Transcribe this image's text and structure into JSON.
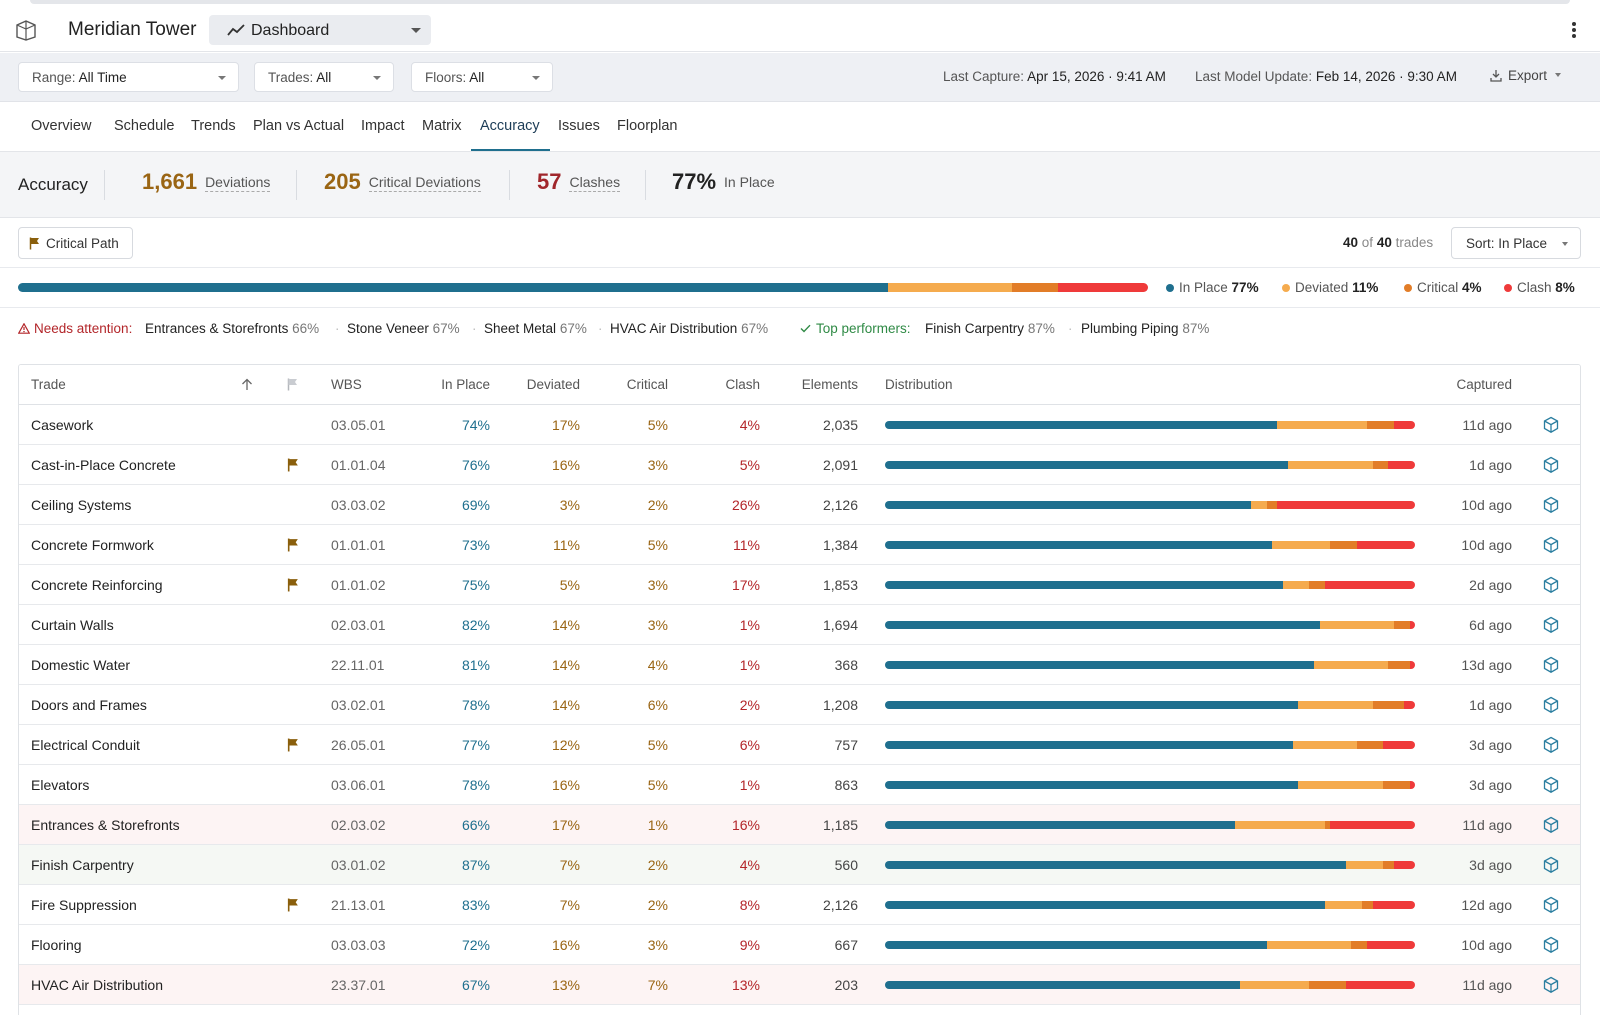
{
  "header": {
    "title": "Meridian Tower",
    "view_label": "Dashboard"
  },
  "filters": {
    "range_key": "Range:",
    "range_val": "All Time",
    "trades_key": "Trades:",
    "trades_val": "All",
    "floors_key": "Floors:",
    "floors_val": "All",
    "last_capture_key": "Last Capture:",
    "last_capture_val": "Apr 15, 2026 · 9:41 AM",
    "last_model_key": "Last Model Update:",
    "last_model_val": "Feb 14, 2026 · 9:30 AM",
    "export_label": "Export"
  },
  "tabs": [
    "Overview",
    "Schedule",
    "Trends",
    "Plan vs Actual",
    "Impact",
    "Matrix",
    "Accuracy",
    "Issues",
    "Floorplan"
  ],
  "active_tab": "Accuracy",
  "summary": {
    "title": "Accuracy",
    "deviations_num": "1,661",
    "deviations_label": "Deviations",
    "critical_num": "205",
    "critical_label": "Critical Deviations",
    "clashes_num": "57",
    "clashes_label": "Clashes",
    "inplace_num": "77%",
    "inplace_label": "In Place"
  },
  "toolbar": {
    "critical_path_label": "Critical Path",
    "count_shown": "40",
    "count_of": "of",
    "count_total": "40",
    "count_unit": "trades",
    "sort_label": "Sort: In Place"
  },
  "overall": {
    "segments": [
      77,
      11,
      4,
      8
    ],
    "legend": [
      {
        "label": "In Place",
        "value": "77%"
      },
      {
        "label": "Deviated",
        "value": "11%"
      },
      {
        "label": "Critical",
        "value": "4%"
      },
      {
        "label": "Clash",
        "value": "8%"
      }
    ]
  },
  "colors": {
    "in_place": "#1f6f8e",
    "deviated": "#f5ab4e",
    "critical": "#e27d28",
    "clash": "#ef3a3a",
    "flag": "#8a5f0c"
  },
  "attention": {
    "needs_label": "Needs attention:",
    "needs": [
      {
        "name": "Entrances & Storefronts",
        "pct": "66%"
      },
      {
        "name": "Stone Veneer",
        "pct": "67%"
      },
      {
        "name": "Sheet Metal",
        "pct": "67%"
      },
      {
        "name": "HVAC Air Distribution",
        "pct": "67%"
      }
    ],
    "top_label": "Top performers:",
    "top": [
      {
        "name": "Finish Carpentry",
        "pct": "87%"
      },
      {
        "name": "Plumbing Piping",
        "pct": "87%"
      }
    ]
  },
  "table": {
    "headers": {
      "trade": "Trade",
      "wbs": "WBS",
      "in_place": "In Place",
      "deviated": "Deviated",
      "critical": "Critical",
      "clash": "Clash",
      "elements": "Elements",
      "distribution": "Distribution",
      "captured": "Captured"
    },
    "rows": [
      {
        "trade": "Casework",
        "flag": false,
        "wbs": "03.05.01",
        "in_place": 74,
        "deviated": 17,
        "critical": 5,
        "clash": 4,
        "elements": "2,035",
        "captured": "11d ago",
        "state": ""
      },
      {
        "trade": "Cast-in-Place Concrete",
        "flag": true,
        "wbs": "01.01.04",
        "in_place": 76,
        "deviated": 16,
        "critical": 3,
        "clash": 5,
        "elements": "2,091",
        "captured": "1d ago",
        "state": ""
      },
      {
        "trade": "Ceiling Systems",
        "flag": false,
        "wbs": "03.03.02",
        "in_place": 69,
        "deviated": 3,
        "critical": 2,
        "clash": 26,
        "elements": "2,126",
        "captured": "10d ago",
        "state": ""
      },
      {
        "trade": "Concrete Formwork",
        "flag": true,
        "wbs": "01.01.01",
        "in_place": 73,
        "deviated": 11,
        "critical": 5,
        "clash": 11,
        "elements": "1,384",
        "captured": "10d ago",
        "state": ""
      },
      {
        "trade": "Concrete Reinforcing",
        "flag": true,
        "wbs": "01.01.02",
        "in_place": 75,
        "deviated": 5,
        "critical": 3,
        "clash": 17,
        "elements": "1,853",
        "captured": "2d ago",
        "state": ""
      },
      {
        "trade": "Curtain Walls",
        "flag": false,
        "wbs": "02.03.01",
        "in_place": 82,
        "deviated": 14,
        "critical": 3,
        "clash": 1,
        "elements": "1,694",
        "captured": "6d ago",
        "state": ""
      },
      {
        "trade": "Domestic Water",
        "flag": false,
        "wbs": "22.11.01",
        "in_place": 81,
        "deviated": 14,
        "critical": 4,
        "clash": 1,
        "elements": "368",
        "captured": "13d ago",
        "state": ""
      },
      {
        "trade": "Doors and Frames",
        "flag": false,
        "wbs": "03.02.01",
        "in_place": 78,
        "deviated": 14,
        "critical": 6,
        "clash": 2,
        "elements": "1,208",
        "captured": "1d ago",
        "state": ""
      },
      {
        "trade": "Electrical Conduit",
        "flag": true,
        "wbs": "26.05.01",
        "in_place": 77,
        "deviated": 12,
        "critical": 5,
        "clash": 6,
        "elements": "757",
        "captured": "3d ago",
        "state": ""
      },
      {
        "trade": "Elevators",
        "flag": false,
        "wbs": "03.06.01",
        "in_place": 78,
        "deviated": 16,
        "critical": 5,
        "clash": 1,
        "elements": "863",
        "captured": "3d ago",
        "state": ""
      },
      {
        "trade": "Entrances & Storefronts",
        "flag": false,
        "wbs": "02.03.02",
        "in_place": 66,
        "deviated": 17,
        "critical": 1,
        "clash": 16,
        "elements": "1,185",
        "captured": "11d ago",
        "state": "warn"
      },
      {
        "trade": "Finish Carpentry",
        "flag": false,
        "wbs": "03.01.02",
        "in_place": 87,
        "deviated": 7,
        "critical": 2,
        "clash": 4,
        "elements": "560",
        "captured": "3d ago",
        "state": "good"
      },
      {
        "trade": "Fire Suppression",
        "flag": true,
        "wbs": "21.13.01",
        "in_place": 83,
        "deviated": 7,
        "critical": 2,
        "clash": 8,
        "elements": "2,126",
        "captured": "12d ago",
        "state": ""
      },
      {
        "trade": "Flooring",
        "flag": false,
        "wbs": "03.03.03",
        "in_place": 72,
        "deviated": 16,
        "critical": 3,
        "clash": 9,
        "elements": "667",
        "captured": "10d ago",
        "state": ""
      },
      {
        "trade": "HVAC Air Distribution",
        "flag": false,
        "wbs": "23.37.01",
        "in_place": 67,
        "deviated": 13,
        "critical": 7,
        "clash": 13,
        "elements": "203",
        "captured": "11d ago",
        "state": "warn"
      }
    ]
  }
}
